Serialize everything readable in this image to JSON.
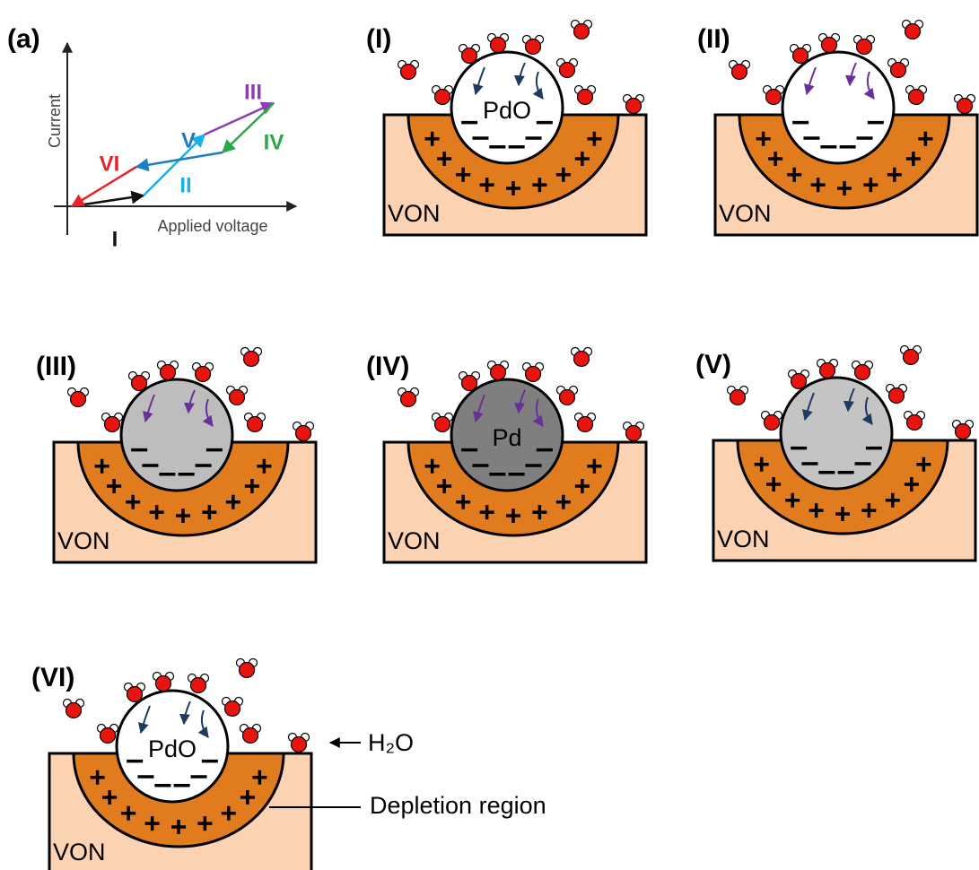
{
  "plot": {
    "label": "(a)",
    "y_axis": "Current",
    "x_axis": "Applied voltage",
    "segments": [
      "I",
      "II",
      "III",
      "IV",
      "V",
      "VI"
    ]
  },
  "panels": [
    {
      "label": "(I)",
      "particle": "PdO",
      "substrate": "VON"
    },
    {
      "label": "(II)",
      "substrate": "VON"
    },
    {
      "label": "(III)",
      "substrate": "VON"
    },
    {
      "label": "(IV)",
      "particle": "Pd",
      "substrate": "VON"
    },
    {
      "label": "(V)",
      "substrate": "VON"
    },
    {
      "label": "(VI)",
      "particle": "PdO",
      "substrate": "VON"
    }
  ],
  "legend": {
    "water": "H₂O",
    "depletion": "Depletion region"
  }
}
